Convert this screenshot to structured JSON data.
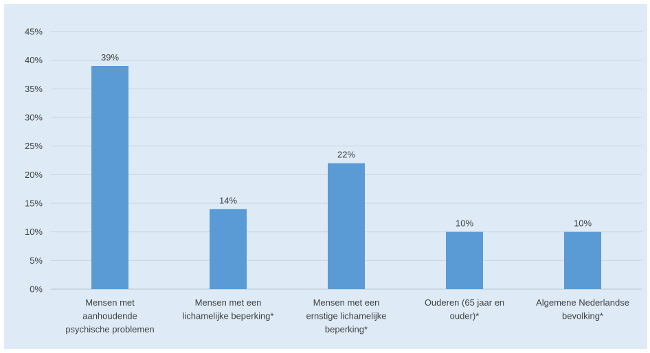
{
  "colors": {
    "background": "#deebf7",
    "bar": "#5b9bd5",
    "gridline": "#c8d3de",
    "text": "#404040"
  },
  "chart_data": {
    "type": "bar",
    "title": "",
    "xlabel": "",
    "ylabel": "",
    "ylim": [
      0,
      45
    ],
    "y_ticks": [
      "0%",
      "5%",
      "10%",
      "15%",
      "20%",
      "25%",
      "30%",
      "35%",
      "40%",
      "45%"
    ],
    "grid": true,
    "legend": "none",
    "categories": [
      [
        "Mensen met",
        "aanhoudende",
        "psychische problemen"
      ],
      [
        "Mensen met een",
        "lichamelijke beperking*"
      ],
      [
        "Mensen met een",
        "ernstige lichamelijke",
        "beperking*"
      ],
      [
        "Ouderen (65 jaar en",
        "ouder)*"
      ],
      [
        "Algemene Nederlandse",
        "bevolking*"
      ]
    ],
    "values": [
      39,
      14,
      22,
      10,
      10
    ],
    "data_labels": [
      "39%",
      "14%",
      "22%",
      "10%",
      "10%"
    ]
  }
}
